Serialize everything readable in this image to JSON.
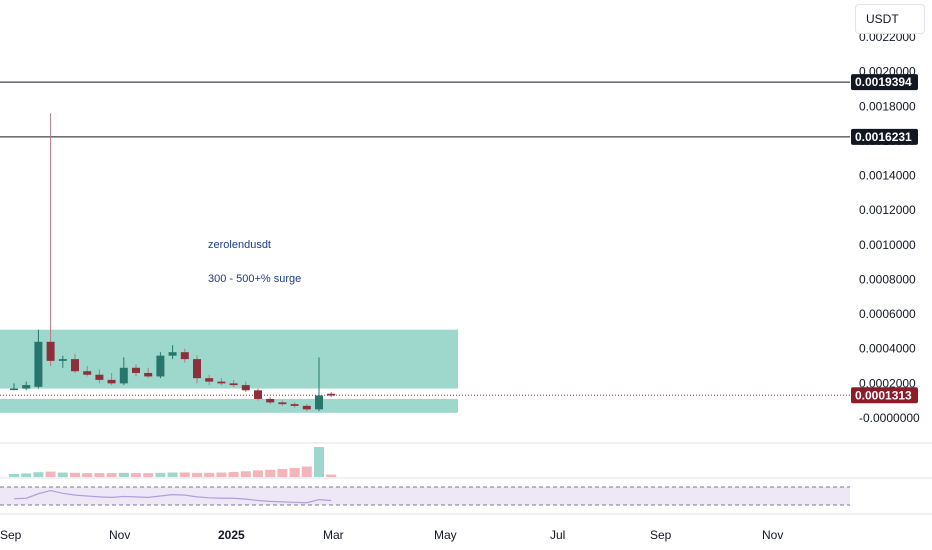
{
  "currency": "USDT",
  "chart_data": {
    "type": "candlestick",
    "y_ticks": [
      "0.0022000",
      "0.0020000",
      "0.0018000",
      "0.0016000",
      "0.0014000",
      "0.0012000",
      "0.0010000",
      "0.0008000",
      "0.0006000",
      "0.0004000",
      "0.0002000",
      "-0.0000000"
    ],
    "x_ticks": [
      {
        "label": "Sep",
        "bold": false
      },
      {
        "label": "Nov",
        "bold": false
      },
      {
        "label": "2025",
        "bold": true
      },
      {
        "label": "Mar",
        "bold": false
      },
      {
        "label": "May",
        "bold": false
      },
      {
        "label": "Jul",
        "bold": false
      },
      {
        "label": "Sep",
        "bold": false
      },
      {
        "label": "Nov",
        "bold": false
      }
    ],
    "ylim": [
      0,
      0.0022
    ],
    "horizontal_levels": [
      {
        "value": 0.0019394,
        "label": "0.0019394"
      },
      {
        "value": 0.0016231,
        "label": "0.0016231"
      }
    ],
    "current_price": {
      "value": 0.0001313,
      "label": "0.0001313"
    },
    "annotations": {
      "symbol": "zerolendusdt",
      "note": "300 - 500+% surge"
    },
    "zones": [
      {
        "from_value": 0.00017,
        "to_value": 0.00051,
        "color": "#9ed8cd"
      },
      {
        "from_value": 3e-05,
        "to_value": 0.00011,
        "color": "#9ed8cd"
      }
    ],
    "candles": [
      {
        "t": 0,
        "o": 0.00017,
        "h": 0.0002,
        "l": 0.00016,
        "c": 0.00017
      },
      {
        "t": 1,
        "o": 0.00017,
        "h": 0.00021,
        "l": 0.00016,
        "c": 0.00019
      },
      {
        "t": 2,
        "o": 0.00018,
        "h": 0.00051,
        "l": 0.00017,
        "c": 0.00044
      },
      {
        "t": 3,
        "o": 0.00044,
        "h": 0.00176,
        "l": 0.0003,
        "c": 0.00033
      },
      {
        "t": 4,
        "o": 0.00033,
        "h": 0.00036,
        "l": 0.00029,
        "c": 0.00034
      },
      {
        "t": 5,
        "o": 0.00034,
        "h": 0.00037,
        "l": 0.00026,
        "c": 0.00027
      },
      {
        "t": 6,
        "o": 0.00027,
        "h": 0.0003,
        "l": 0.00024,
        "c": 0.00025
      },
      {
        "t": 7,
        "o": 0.00025,
        "h": 0.00028,
        "l": 0.0002,
        "c": 0.00022
      },
      {
        "t": 8,
        "o": 0.00022,
        "h": 0.00026,
        "l": 0.00019,
        "c": 0.0002
      },
      {
        "t": 9,
        "o": 0.0002,
        "h": 0.00035,
        "l": 0.00019,
        "c": 0.00029
      },
      {
        "t": 10,
        "o": 0.00029,
        "h": 0.00031,
        "l": 0.00024,
        "c": 0.00026
      },
      {
        "t": 11,
        "o": 0.00026,
        "h": 0.00029,
        "l": 0.00023,
        "c": 0.00024
      },
      {
        "t": 12,
        "o": 0.00024,
        "h": 0.00038,
        "l": 0.00023,
        "c": 0.00036
      },
      {
        "t": 13,
        "o": 0.00036,
        "h": 0.00042,
        "l": 0.00034,
        "c": 0.00038
      },
      {
        "t": 14,
        "o": 0.00038,
        "h": 0.0004,
        "l": 0.00032,
        "c": 0.00034
      },
      {
        "t": 15,
        "o": 0.00034,
        "h": 0.00036,
        "l": 0.0002,
        "c": 0.00023
      },
      {
        "t": 16,
        "o": 0.00023,
        "h": 0.00025,
        "l": 0.00019,
        "c": 0.00021
      },
      {
        "t": 17,
        "o": 0.00021,
        "h": 0.00023,
        "l": 0.00019,
        "c": 0.0002
      },
      {
        "t": 18,
        "o": 0.0002,
        "h": 0.00022,
        "l": 0.00018,
        "c": 0.00019
      },
      {
        "t": 19,
        "o": 0.00019,
        "h": 0.00021,
        "l": 0.00015,
        "c": 0.00016
      },
      {
        "t": 20,
        "o": 0.00016,
        "h": 0.00017,
        "l": 0.0001,
        "c": 0.00011
      },
      {
        "t": 21,
        "o": 0.00011,
        "h": 0.00012,
        "l": 8e-05,
        "c": 9e-05
      },
      {
        "t": 22,
        "o": 9e-05,
        "h": 0.0001,
        "l": 7e-05,
        "c": 8e-05
      },
      {
        "t": 23,
        "o": 8e-05,
        "h": 9e-05,
        "l": 6e-05,
        "c": 7e-05
      },
      {
        "t": 24,
        "o": 7e-05,
        "h": 8e-05,
        "l": 4e-05,
        "c": 5e-05
      },
      {
        "t": 25,
        "o": 5e-05,
        "h": 0.00035,
        "l": 4e-05,
        "c": 0.00013
      },
      {
        "t": 26,
        "o": 0.00014,
        "h": 0.00015,
        "l": 0.00012,
        "c": 0.00013
      }
    ],
    "volume": [
      0.1,
      0.12,
      0.16,
      0.18,
      0.15,
      0.14,
      0.13,
      0.13,
      0.13,
      0.14,
      0.13,
      0.13,
      0.14,
      0.15,
      0.15,
      0.14,
      0.14,
      0.15,
      0.17,
      0.19,
      0.22,
      0.24,
      0.27,
      0.3,
      0.35,
      1.0,
      0.08
    ],
    "rsi": [
      44,
      45,
      55,
      62,
      56,
      52,
      50,
      48,
      47,
      49,
      48,
      47,
      50,
      53,
      52,
      48,
      46,
      45,
      45,
      43,
      40,
      38,
      37,
      36,
      35,
      42,
      40
    ]
  }
}
